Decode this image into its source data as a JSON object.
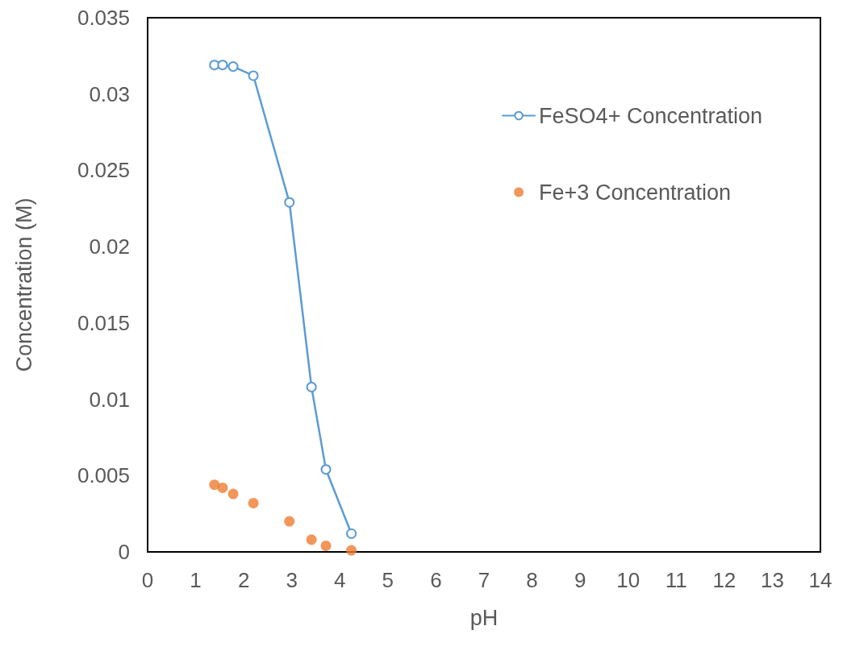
{
  "chart_data": {
    "type": "line",
    "xlabel": "pH",
    "ylabel": "Concentration (M)",
    "x": [
      1.39,
      1.56,
      1.78,
      2.2,
      2.95,
      3.41,
      3.71,
      4.24
    ],
    "series": [
      {
        "name": "FeSO4+ Concentration",
        "color": "#5b9bd5",
        "values": [
          0.0319,
          0.0319,
          0.0318,
          0.0312,
          0.0229,
          0.0108,
          0.0054,
          0.0012
        ]
      },
      {
        "name": "Fe+3 Concentration",
        "type": "scatter",
        "color": "#ed7d31",
        "values": [
          0.0044,
          0.0042,
          0.0038,
          0.0032,
          0.002,
          0.0008,
          0.0004,
          0.0001
        ]
      }
    ],
    "xlim": [
      0,
      14
    ],
    "xticks": [
      0,
      1,
      2,
      3,
      4,
      5,
      6,
      7,
      8,
      9,
      10,
      11,
      12,
      13,
      14
    ],
    "ylim": [
      0,
      0.035
    ],
    "yticks": [
      0,
      0.005,
      0.01,
      0.015,
      0.02,
      0.025,
      0.03,
      0.035
    ],
    "grid": false,
    "legend": "top right",
    "marker": "circle",
    "line_style": "solid"
  }
}
